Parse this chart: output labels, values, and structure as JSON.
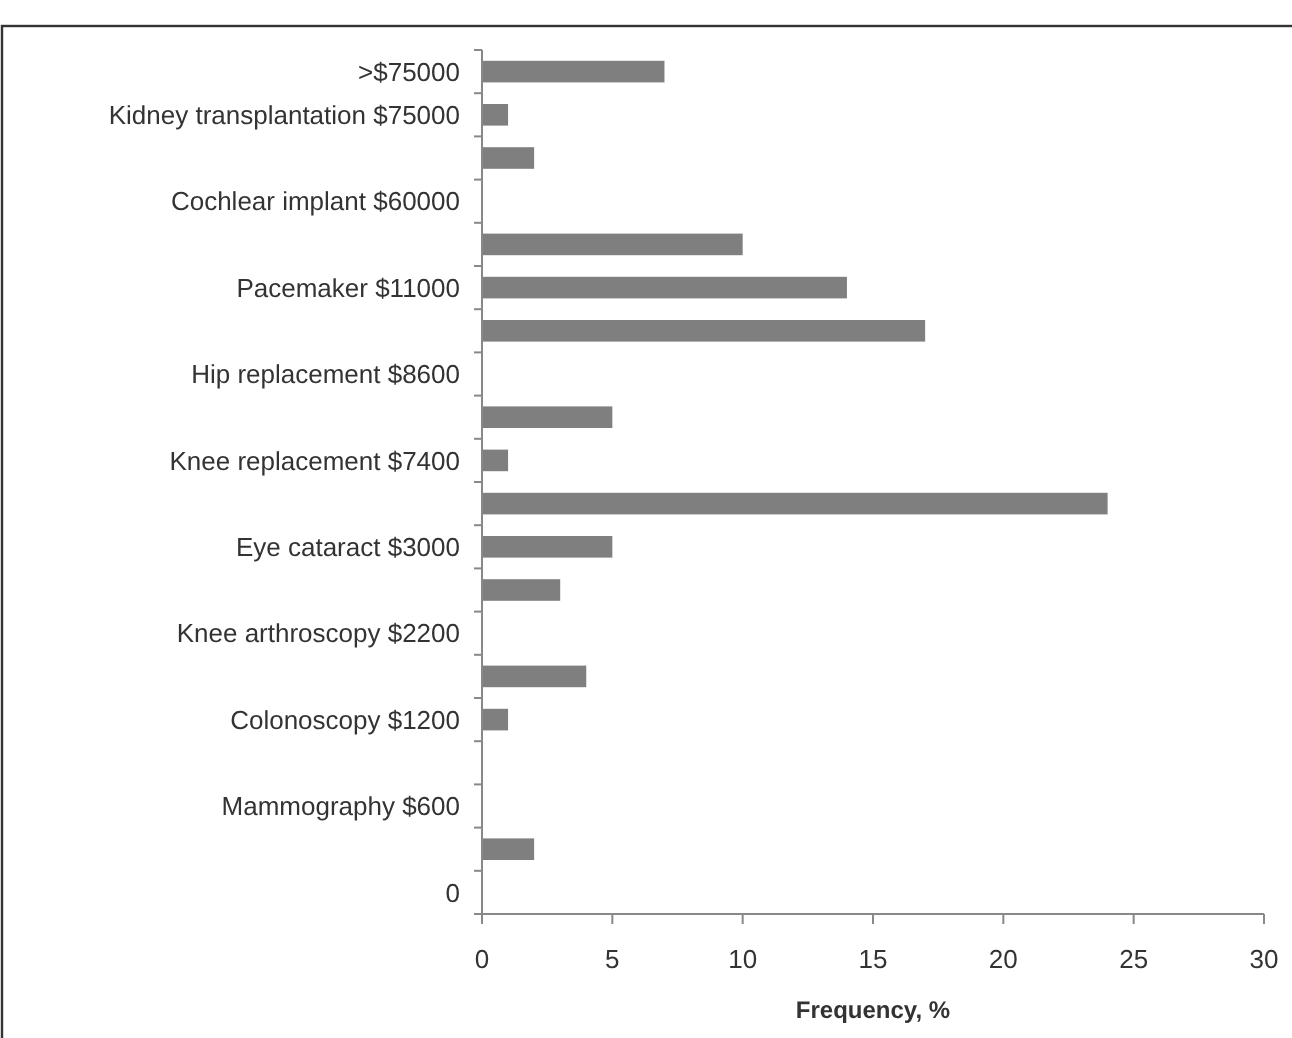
{
  "chart_data": {
    "type": "bar",
    "orientation": "horizontal",
    "xlabel": "Frequency, %",
    "categories": [
      ">$75000",
      "Kidney transplantation $75000",
      null,
      "Cochlear implant $60000",
      null,
      "Pacemaker $11000",
      null,
      "Hip replacement $8600",
      null,
      "Knee replacement $7400",
      null,
      "Eye cataract $3000",
      null,
      "Knee arthroscopy $2200",
      null,
      "Colonoscopy $1200",
      null,
      "Mammography $600",
      null,
      "0"
    ],
    "values": [
      7,
      1,
      2,
      0,
      10,
      14,
      17,
      0,
      5,
      1,
      24,
      5,
      3,
      0,
      4,
      1,
      0,
      0,
      2,
      0
    ],
    "color": "#7f7f7f",
    "xlim": [
      0,
      30
    ],
    "xticks": [
      0,
      5,
      10,
      15,
      20,
      25,
      30
    ],
    "grid": false
  }
}
